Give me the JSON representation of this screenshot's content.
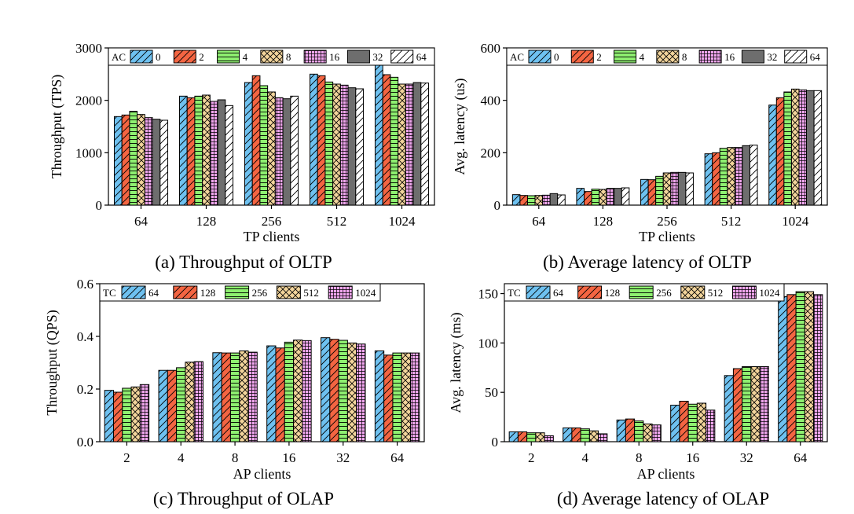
{
  "palette": {
    "blue": "#6ec1f0",
    "red": "#f46542",
    "green": "#8ef070",
    "yellow": "#f2d49b",
    "pink": "#f0a6ee",
    "gray": "#6e6e6e",
    "white": "#ffffff"
  },
  "chart_data": [
    {
      "type": "bar",
      "caption": "(a) Throughput of OLTP",
      "xlabel": "TP clients",
      "ylabel": "Throughput (TPS)",
      "ylim": [
        0,
        3000
      ],
      "yticks": [
        0,
        1000,
        2000,
        3000
      ],
      "categories": [
        "64",
        "128",
        "256",
        "512",
        "1024"
      ],
      "legend_title": "AC",
      "legend_placement": "top",
      "series": [
        {
          "name": "0",
          "color": "#6ec1f0",
          "pattern": "hatch-forward",
          "values": [
            1690,
            2080,
            2340,
            2500,
            2700
          ]
        },
        {
          "name": "2",
          "color": "#f46542",
          "pattern": "hatch-forward",
          "values": [
            1720,
            2050,
            2470,
            2470,
            2490
          ]
        },
        {
          "name": "4",
          "color": "#8ef070",
          "pattern": "horizontal-lines",
          "values": [
            1790,
            2080,
            2280,
            2350,
            2440
          ]
        },
        {
          "name": "8",
          "color": "#f2d49b",
          "pattern": "crosshatch",
          "values": [
            1730,
            2100,
            2160,
            2310,
            2310
          ]
        },
        {
          "name": "16",
          "color": "#f0a6ee",
          "pattern": "grid",
          "values": [
            1670,
            1980,
            2050,
            2290,
            2310
          ]
        },
        {
          "name": "32",
          "color": "#6e6e6e",
          "pattern": "solid",
          "values": [
            1640,
            2010,
            2030,
            2240,
            2340
          ]
        },
        {
          "name": "64",
          "color": "#ffffff",
          "pattern": "hatch-forward",
          "values": [
            1620,
            1900,
            2080,
            2220,
            2330
          ]
        }
      ]
    },
    {
      "type": "bar",
      "caption": "(b) Average latency of OLTP",
      "xlabel": "TP clients",
      "ylabel": "Avg. latency (us)",
      "ylim": [
        0,
        600
      ],
      "yticks": [
        0,
        200,
        400,
        600
      ],
      "categories": [
        "64",
        "128",
        "256",
        "512",
        "1024"
      ],
      "legend_title": "AC",
      "legend_placement": "top",
      "series": [
        {
          "name": "0",
          "color": "#6ec1f0",
          "pattern": "hatch-forward",
          "values": [
            40,
            64,
            98,
            196,
            382
          ]
        },
        {
          "name": "2",
          "color": "#f46542",
          "pattern": "hatch-forward",
          "values": [
            37,
            52,
            97,
            200,
            410
          ]
        },
        {
          "name": "4",
          "color": "#8ef070",
          "pattern": "horizontal-lines",
          "values": [
            36,
            61,
            110,
            217,
            432
          ]
        },
        {
          "name": "8",
          "color": "#f2d49b",
          "pattern": "crosshatch",
          "values": [
            37,
            60,
            123,
            220,
            443
          ]
        },
        {
          "name": "16",
          "color": "#f0a6ee",
          "pattern": "grid",
          "values": [
            38,
            64,
            125,
            220,
            440
          ]
        },
        {
          "name": "32",
          "color": "#6e6e6e",
          "pattern": "solid",
          "values": [
            44,
            64,
            125,
            227,
            437
          ]
        },
        {
          "name": "64",
          "color": "#ffffff",
          "pattern": "hatch-forward",
          "values": [
            39,
            66,
            123,
            229,
            437
          ]
        }
      ]
    },
    {
      "type": "bar",
      "caption": "(c) Throughput of OLAP",
      "xlabel": "AP clients",
      "ylabel": "Throughput (QPS)",
      "ylim": [
        0,
        0.6
      ],
      "yticks": [
        0.0,
        0.2,
        0.4,
        0.6
      ],
      "ytick_labels": [
        "0.0",
        "0.2",
        "0.4",
        "0.6"
      ],
      "categories": [
        "2",
        "4",
        "8",
        "16",
        "32",
        "64"
      ],
      "legend_title": "TC",
      "legend_placement": "top-left",
      "series": [
        {
          "name": "64",
          "color": "#6ec1f0",
          "pattern": "hatch-forward",
          "values": [
            0.195,
            0.271,
            0.338,
            0.364,
            0.395,
            0.345
          ]
        },
        {
          "name": "128",
          "color": "#f46542",
          "pattern": "hatch-forward",
          "values": [
            0.188,
            0.271,
            0.337,
            0.356,
            0.389,
            0.329
          ]
        },
        {
          "name": "256",
          "color": "#8ef070",
          "pattern": "horizontal-lines",
          "values": [
            0.203,
            0.281,
            0.337,
            0.378,
            0.385,
            0.337
          ]
        },
        {
          "name": "512",
          "color": "#f2d49b",
          "pattern": "crosshatch",
          "values": [
            0.208,
            0.302,
            0.345,
            0.386,
            0.375,
            0.337
          ]
        },
        {
          "name": "1024",
          "color": "#f0a6ee",
          "pattern": "grid",
          "values": [
            0.217,
            0.304,
            0.34,
            0.384,
            0.371,
            0.337
          ]
        }
      ]
    },
    {
      "type": "bar",
      "caption": "(d) Average latency of OLAP",
      "xlabel": "AP clients",
      "ylabel": "Avg. latency (ms)",
      "ylim": [
        0,
        160
      ],
      "yticks": [
        0,
        50,
        100,
        150
      ],
      "categories": [
        "2",
        "4",
        "8",
        "16",
        "32",
        "64"
      ],
      "legend_title": "TC",
      "legend_placement": "top-left",
      "series": [
        {
          "name": "64",
          "color": "#6ec1f0",
          "pattern": "hatch-forward",
          "values": [
            10,
            14,
            22,
            37,
            67,
            147
          ]
        },
        {
          "name": "128",
          "color": "#f46542",
          "pattern": "hatch-forward",
          "values": [
            10,
            14,
            23,
            41,
            74,
            149
          ]
        },
        {
          "name": "256",
          "color": "#8ef070",
          "pattern": "horizontal-lines",
          "values": [
            9,
            13,
            21,
            38,
            76,
            152
          ]
        },
        {
          "name": "512",
          "color": "#f2d49b",
          "pattern": "crosshatch",
          "values": [
            9,
            11,
            18,
            39,
            76,
            152
          ]
        },
        {
          "name": "1024",
          "color": "#f0a6ee",
          "pattern": "grid",
          "values": [
            6,
            8,
            17,
            32,
            76,
            149
          ]
        }
      ]
    }
  ]
}
